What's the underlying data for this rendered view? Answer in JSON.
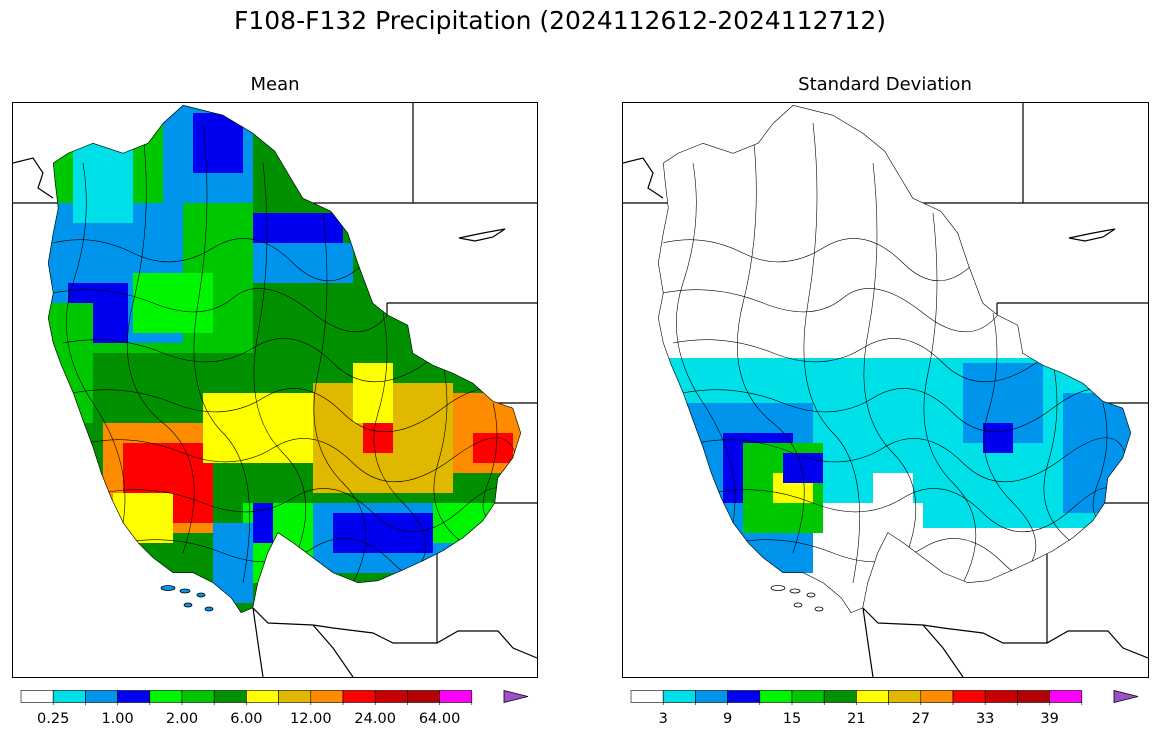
{
  "figure": {
    "suptitle": "F108-F132 Precipitation (2024112612-2024112712)"
  },
  "panels": [
    {
      "title": "Mean",
      "colorbar": {
        "colors": [
          "#ffffff",
          "#00e0e8",
          "#0094ec",
          "#0000f0",
          "#00f500",
          "#00c800",
          "#009000",
          "#ffff00",
          "#e0b800",
          "#ff8c00",
          "#ff0000",
          "#c80000",
          "#b40000",
          "#ff00ff",
          "#9b50c8"
        ],
        "extend": "max",
        "tick_labels": [
          "0.25",
          "1.00",
          "2.00",
          "6.00",
          "12.00",
          "24.00",
          "64.00"
        ]
      }
    },
    {
      "title": "Standard Deviation",
      "colorbar": {
        "colors": [
          "#ffffff",
          "#00e0e8",
          "#0094ec",
          "#0000f0",
          "#00f500",
          "#00c800",
          "#009000",
          "#ffff00",
          "#e0b800",
          "#ff8c00",
          "#ff0000",
          "#c80000",
          "#b40000",
          "#ff00ff",
          "#9b50c8"
        ],
        "extend": "max",
        "tick_labels": [
          "3",
          "9",
          "15",
          "21",
          "27",
          "33",
          "39"
        ]
      }
    }
  ]
}
